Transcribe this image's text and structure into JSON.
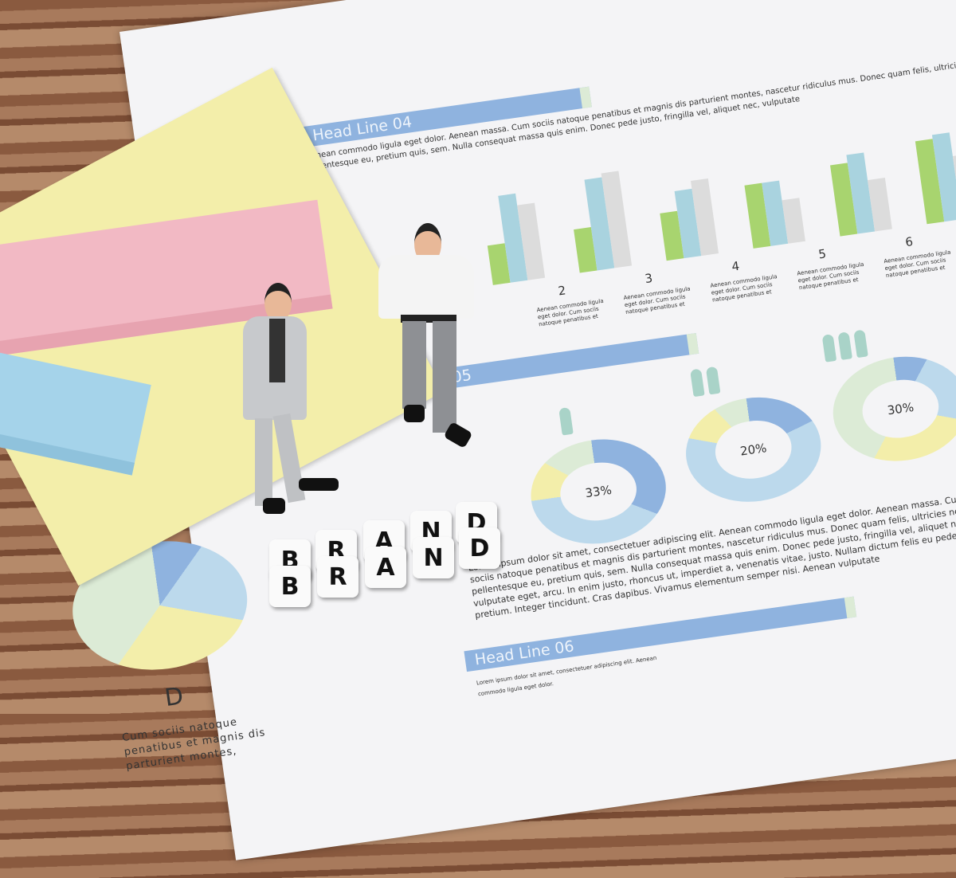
{
  "document": {
    "headlines": [
      "Head Line 04",
      "Head Line 05",
      "Head Line 06"
    ],
    "top_text": "Aenean commodo ligula eget dolor. Aenean massa. Cum sociis natoque penatibus et magnis dis parturient montes, nascetur ridiculus mus. Donec quam felis, ultricies nec, pellentesque eu, pretium quis, sem. Nulla consequat massa quis enim. Donec pede justo, fringilla vel, aliquet nec, vulputate",
    "bar_group_numbers": [
      "2",
      "3",
      "4",
      "5",
      "6"
    ],
    "bar_caption": "Aenean commodo ligula eget dolor. Cum sociis natoque penatibus et",
    "donut_labels": [
      "33%",
      "20%",
      "30%"
    ],
    "pie_letter": "D",
    "pie_caption": "Cum sociis natoque penatibus et magnis dis parturient montes,",
    "body_text": "Lorem ipsum dolor sit amet, consectetuer adipiscing elit. Aenean commodo ligula eget dolor. Aenean massa. Cum sociis natoque penatibus et magnis dis parturient montes, nascetur ridiculus mus. Donec quam felis, ultricies nec, pellentesque eu, pretium quis, sem. Nulla consequat massa quis enim. Donec pede justo, fringilla vel, aliquet nec, vulputate eget, arcu. In enim justo, rhoncus ut, imperdiet a, venenatis vitae, justo. Nullam dictum felis eu pede mollis pretium. Integer tincidunt. Cras dapibus. Vivamus elementum semper nisi. Aenean vulputate",
    "bottom_text": "Lorem ipsum dolor sit amet, consectetuer adipiscing elit. Aenean commodo ligula eget dolor."
  },
  "blocks": {
    "row1": [
      "B",
      "R",
      "A",
      "N",
      "D"
    ],
    "row2": [
      "B",
      "R",
      "A",
      "N",
      "D"
    ]
  },
  "colors": {
    "blue": "#8fb3df",
    "green": "#a8d46f",
    "teal": "#a9d3df",
    "grey": "#dcdcdc",
    "yellow": "#f3eeaa",
    "pink": "#f2b9c4",
    "skyblue": "#a5d3ea"
  }
}
